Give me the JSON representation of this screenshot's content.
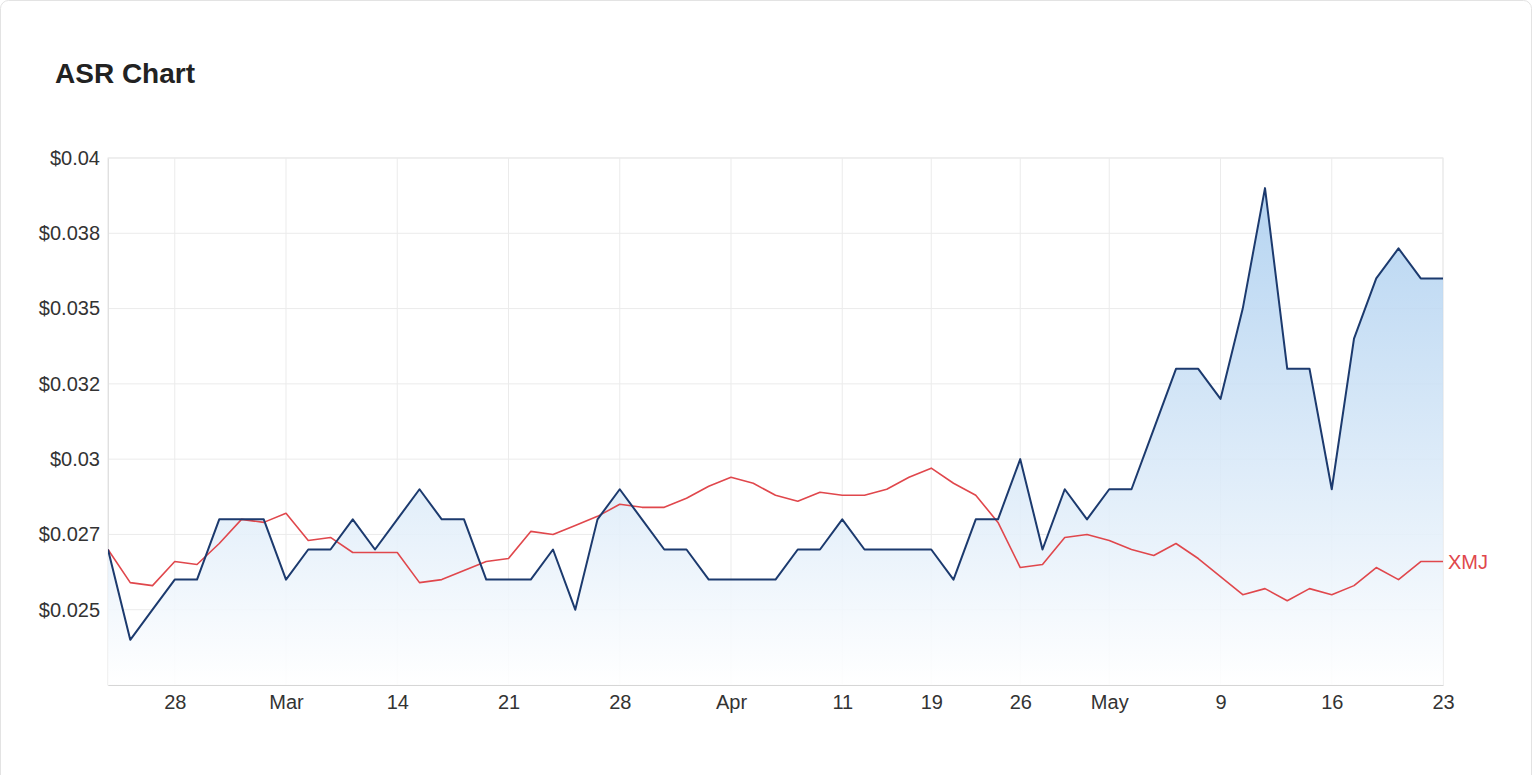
{
  "chart_data": {
    "type": "line",
    "title": "ASR Chart",
    "categories": [
      null,
      null,
      null,
      "28",
      null,
      null,
      null,
      null,
      "Mar",
      null,
      null,
      null,
      null,
      "14",
      null,
      null,
      null,
      null,
      "21",
      null,
      null,
      null,
      null,
      "28",
      null,
      null,
      null,
      null,
      "Apr",
      null,
      null,
      null,
      null,
      "11",
      null,
      null,
      null,
      "19",
      null,
      null,
      null,
      "26",
      null,
      null,
      null,
      "May",
      null,
      null,
      null,
      null,
      "9",
      null,
      null,
      null,
      null,
      "16",
      null,
      null,
      null,
      null,
      "23"
    ],
    "series": [
      {
        "type": "area",
        "color": "#1c3a6e",
        "values": [
          0.027,
          0.024,
          0.025,
          0.026,
          0.026,
          0.028,
          0.028,
          0.028,
          0.026,
          0.027,
          0.027,
          0.028,
          0.027,
          0.028,
          0.029,
          0.028,
          0.028,
          0.026,
          0.026,
          0.026,
          0.027,
          0.025,
          0.028,
          0.029,
          0.028,
          0.027,
          0.027,
          0.026,
          0.026,
          0.026,
          0.026,
          0.027,
          0.027,
          0.028,
          0.027,
          0.027,
          0.027,
          0.027,
          0.026,
          0.028,
          0.028,
          0.03,
          0.027,
          0.029,
          0.028,
          0.029,
          0.029,
          0.031,
          0.033,
          0.033,
          0.032,
          0.035,
          0.039,
          0.033,
          0.033,
          0.029,
          0.034,
          0.036,
          0.037,
          0.036,
          0.036
        ]
      },
      {
        "name": "XMJ",
        "type": "line",
        "color": "#e0474c",
        "values": [
          0.027,
          0.0259,
          0.0258,
          0.0266,
          0.0265,
          0.0272,
          0.028,
          0.0279,
          0.0282,
          0.0273,
          0.0274,
          0.0269,
          0.0269,
          0.0269,
          0.0259,
          0.026,
          0.0263,
          0.0266,
          0.0267,
          0.0276,
          0.0275,
          0.0278,
          0.0281,
          0.0285,
          0.0284,
          0.0284,
          0.0287,
          0.0291,
          0.0294,
          0.0292,
          0.0288,
          0.0286,
          0.0289,
          0.0288,
          0.0288,
          0.029,
          0.0294,
          0.0297,
          0.0292,
          0.0288,
          0.0279,
          0.0264,
          0.0265,
          0.0274,
          0.0275,
          0.0273,
          0.027,
          0.0268,
          0.0272,
          0.0267,
          0.0261,
          0.0255,
          0.0257,
          0.0253,
          0.0257,
          0.0255,
          0.0258,
          0.0264,
          0.026,
          0.0266,
          0.0266
        ]
      }
    ],
    "ylim": [
      0.0225,
      0.04
    ],
    "yticks": [
      {
        "value": 0.025,
        "label": "$0.025"
      },
      {
        "value": 0.0275,
        "label": "$0.027"
      },
      {
        "value": 0.03,
        "label": "$0.03"
      },
      {
        "value": 0.0325,
        "label": "$0.032"
      },
      {
        "value": 0.035,
        "label": "$0.035"
      },
      {
        "value": 0.0375,
        "label": "$0.038"
      },
      {
        "value": 0.04,
        "label": "$0.04"
      }
    ],
    "grid": true
  }
}
